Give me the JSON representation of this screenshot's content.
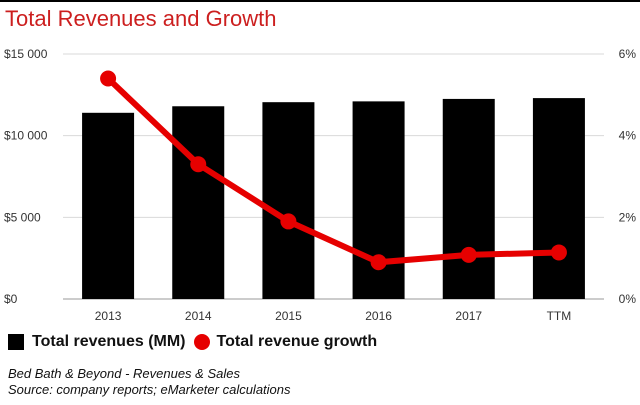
{
  "title": "Total Revenues and Growth",
  "legend": {
    "bars_label": "Total revenues (MM)",
    "line_label": "Total revenue growth"
  },
  "footnotes": {
    "line1": "Bed Bath & Beyond - Revenues & Sales",
    "line2": "Source: company reports; eMarketer calculations"
  },
  "colors": {
    "bars": "#000000",
    "line": "#e60000",
    "title": "#cc1f1f"
  },
  "chart_data": {
    "type": "bar",
    "categories": [
      "2013",
      "2014",
      "2015",
      "2016",
      "2017",
      "TTM"
    ],
    "series": [
      {
        "name": "Total revenues (MM)",
        "type": "bar",
        "axis": "left",
        "values": [
          11400,
          11800,
          12050,
          12100,
          12250,
          12300
        ]
      },
      {
        "name": "Total revenue growth",
        "type": "line",
        "axis": "right",
        "values": [
          5.4,
          3.3,
          1.9,
          0.9,
          1.08,
          1.14
        ]
      }
    ],
    "y_left": {
      "ylim": [
        0,
        15000
      ],
      "ticks": [
        0,
        5000,
        10000,
        15000
      ],
      "tick_labels": [
        "$0",
        "$5 000",
        "$10 000",
        "$15 000"
      ]
    },
    "y_right": {
      "ylim": [
        0,
        6
      ],
      "ticks": [
        0,
        2,
        4,
        6
      ],
      "tick_labels": [
        "0%",
        "2%",
        "4%",
        "6%"
      ]
    },
    "grid": true,
    "legend_position": "bottom-left"
  }
}
